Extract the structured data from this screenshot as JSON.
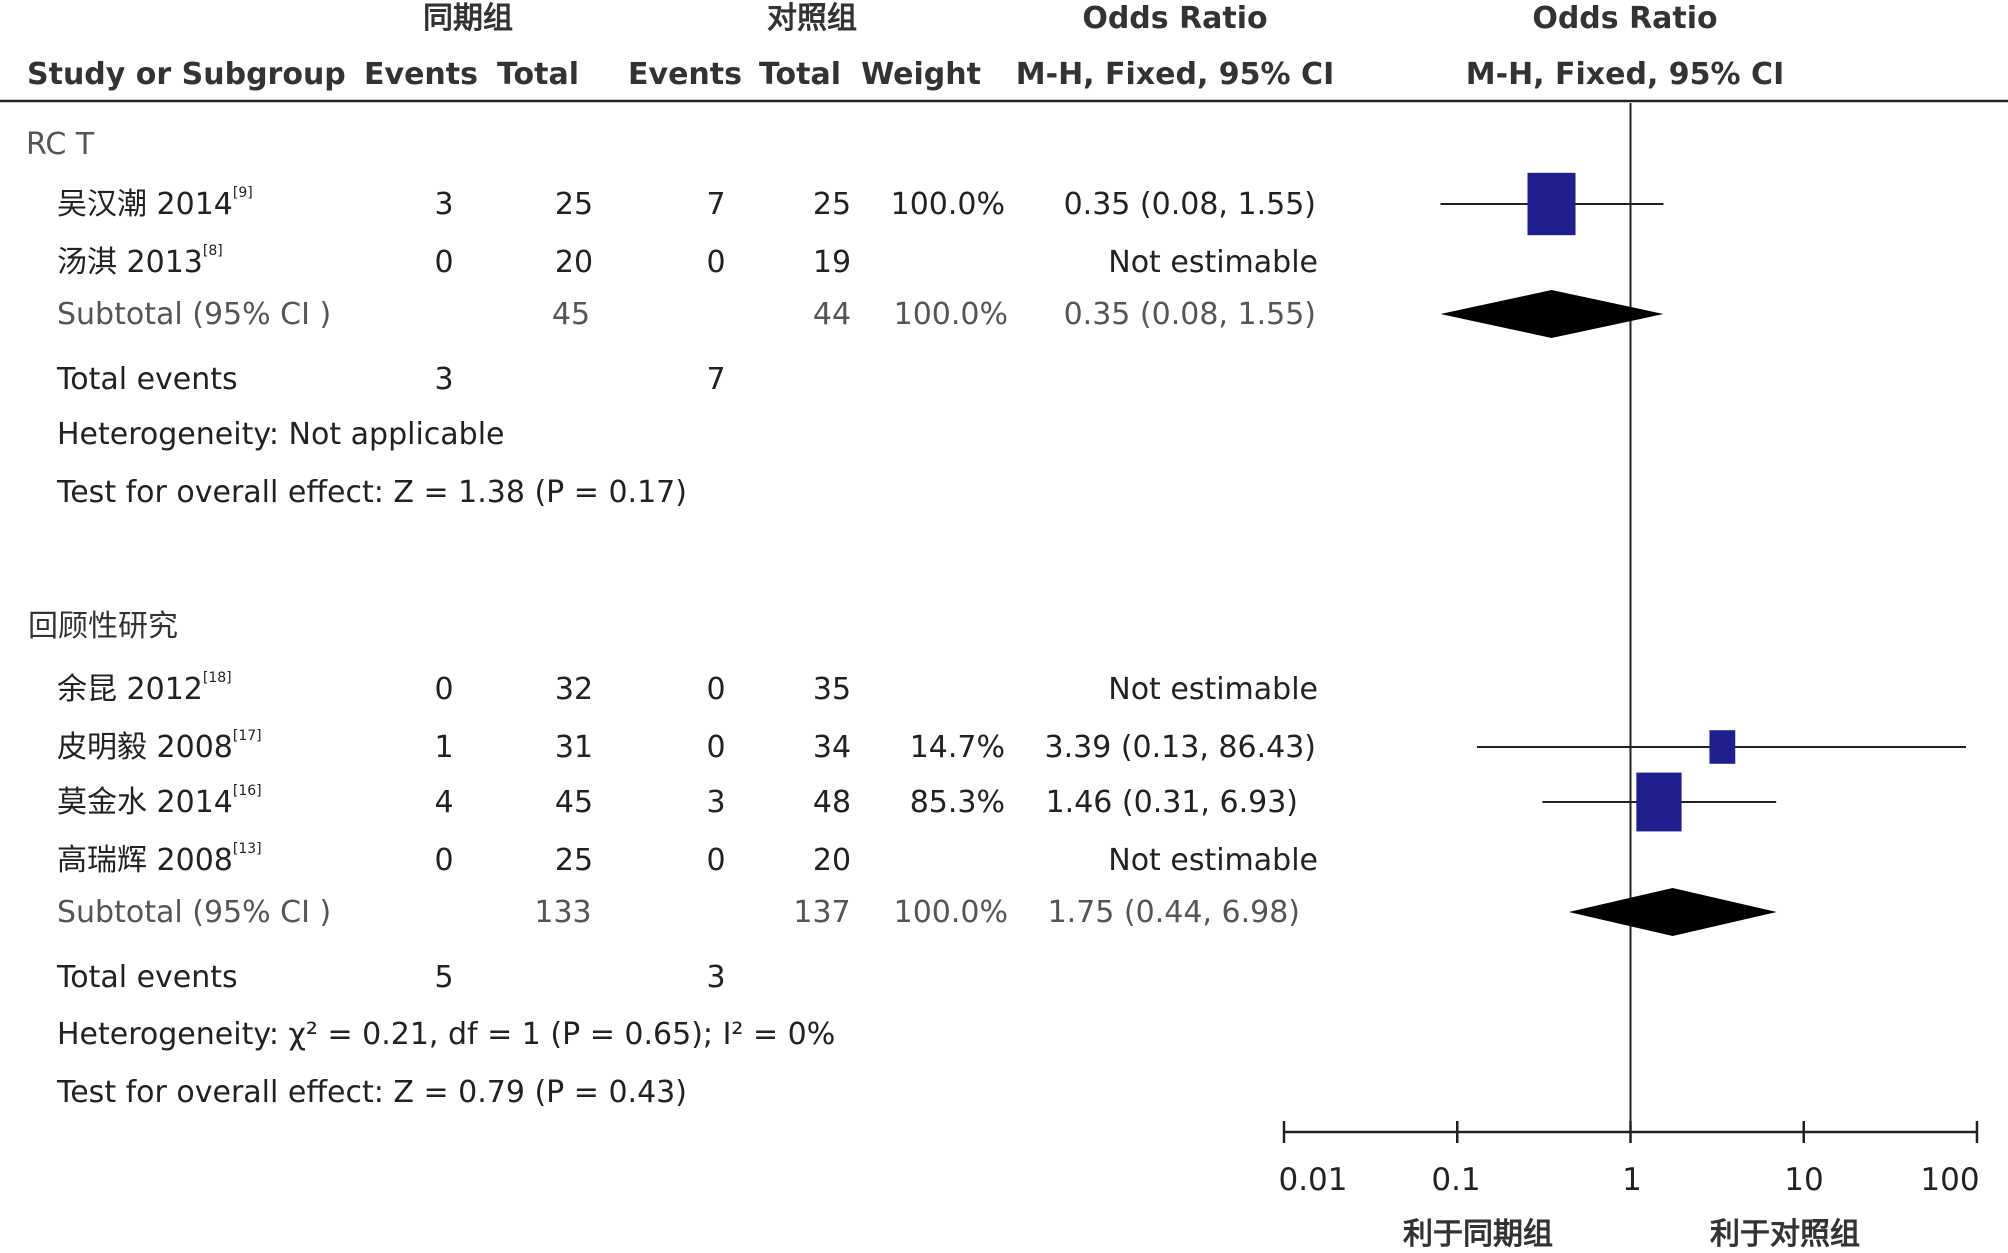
{
  "header": {
    "group1": "同期组",
    "group2": "对照组",
    "or_title_left": "Odds Ratio",
    "or_title_right": "Odds Ratio",
    "col_study": "Study or Subgroup",
    "col_events1": "Events",
    "col_total1": "Total",
    "col_events2": "Events",
    "col_total2": "Total",
    "col_weight": "Weight",
    "col_method_left": "M-H, Fixed, 95% CI",
    "col_method_right": "M-H, Fixed, 95% CI"
  },
  "groups": [
    {
      "label": "RC T",
      "studies": [
        {
          "name": "吴汉潮 2014",
          "ref": "[9]",
          "e1": "3",
          "t1": "25",
          "e2": "7",
          "t2": "25",
          "weight": "100.0%",
          "ci": "0.35 (0.08, 1.55)"
        },
        {
          "name": "汤淇 2013",
          "ref": "[8]",
          "e1": "0",
          "t1": "20",
          "e2": "0",
          "t2": "19",
          "weight": "",
          "ci": "Not estimable"
        }
      ],
      "subtotal": {
        "label": "Subtotal (95% CI )",
        "t1": "45",
        "t2": "44",
        "weight": "100.0%",
        "ci": "0.35 (0.08, 1.55)"
      },
      "events": {
        "label": "Total events",
        "e1": "3",
        "e2": "7"
      },
      "heterogeneity": "Heterogeneity: Not applicable",
      "overall": "Test for overall effect: Z = 1.38 (P = 0.17)"
    },
    {
      "label": "回顾性研究",
      "studies": [
        {
          "name": "余昆 2012",
          "ref": "[18]",
          "e1": "0",
          "t1": "32",
          "e2": "0",
          "t2": "35",
          "weight": "",
          "ci": "Not estimable"
        },
        {
          "name": "皮明毅 2008",
          "ref": "[17]",
          "e1": "1",
          "t1": "31",
          "e2": "0",
          "t2": "34",
          "weight": "14.7%",
          "ci": "3.39 (0.13, 86.43)"
        },
        {
          "name": "莫金水 2014",
          "ref": "[16]",
          "e1": "4",
          "t1": "45",
          "e2": "3",
          "t2": "48",
          "weight": "85.3%",
          "ci": "1.46 (0.31, 6.93)"
        },
        {
          "name": "高瑞辉 2008",
          "ref": "[13]",
          "e1": "0",
          "t1": "25",
          "e2": "0",
          "t2": "20",
          "weight": "",
          "ci": "Not estimable"
        }
      ],
      "subtotal": {
        "label": "Subtotal (95% CI )",
        "t1": "133",
        "t2": "137",
        "weight": "100.0%",
        "ci": "1.75 (0.44, 6.98)"
      },
      "events": {
        "label": "Total events",
        "e1": "5",
        "e2": "3"
      },
      "heterogeneity": "Heterogeneity: χ² = 0.21, df = 1 (P = 0.65); I² = 0%",
      "overall": "Test for overall effect: Z = 0.79 (P = 0.43)"
    }
  ],
  "axis": {
    "ticks": [
      0.01,
      0.1,
      1,
      10,
      100
    ],
    "tick_labels": [
      "0.01",
      "0.1",
      "1",
      "10",
      "100"
    ],
    "favours_left": "利于同期组",
    "favours_right": "利于对照组"
  },
  "colors": {
    "study_marker": "#1f1f8f",
    "diamond": "#000000",
    "lines": "#222222"
  },
  "chart_data": {
    "type": "forest",
    "x_scale": "log",
    "xlim": [
      0.01,
      100
    ],
    "studies": [
      {
        "name": "吴汉潮 2014",
        "or": 0.35,
        "lo": 0.08,
        "hi": 1.55,
        "weight": 100.0
      },
      {
        "name": "汤淇 2013",
        "or": null,
        "lo": null,
        "hi": null,
        "weight": null
      },
      {
        "name": "余昆 2012",
        "or": null,
        "lo": null,
        "hi": null,
        "weight": null
      },
      {
        "name": "皮明毅 2008",
        "or": 3.39,
        "lo": 0.13,
        "hi": 86.43,
        "weight": 14.7
      },
      {
        "name": "莫金水 2014",
        "or": 1.46,
        "lo": 0.31,
        "hi": 6.93,
        "weight": 85.3
      },
      {
        "name": "高瑞辉 2008",
        "or": null,
        "lo": null,
        "hi": null,
        "weight": null
      }
    ],
    "subtotals": [
      {
        "group": "RC T",
        "or": 0.35,
        "lo": 0.08,
        "hi": 1.55
      },
      {
        "group": "回顾性研究",
        "or": 1.75,
        "lo": 0.44,
        "hi": 6.98
      }
    ]
  }
}
